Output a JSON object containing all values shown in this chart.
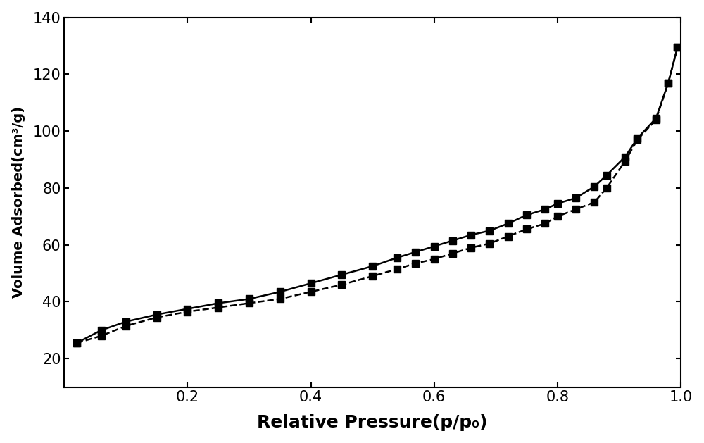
{
  "adsorption_x": [
    0.02,
    0.06,
    0.1,
    0.15,
    0.2,
    0.25,
    0.3,
    0.35,
    0.4,
    0.45,
    0.5,
    0.54,
    0.57,
    0.6,
    0.63,
    0.66,
    0.69,
    0.72,
    0.75,
    0.78,
    0.8,
    0.83,
    0.86,
    0.88,
    0.91,
    0.93,
    0.96,
    0.98,
    0.995
  ],
  "adsorption_y": [
    25.5,
    28.0,
    31.5,
    34.5,
    36.5,
    38.0,
    39.5,
    41.0,
    43.5,
    46.0,
    49.0,
    51.5,
    53.5,
    55.0,
    57.0,
    59.0,
    60.5,
    63.0,
    65.5,
    67.5,
    70.0,
    72.5,
    75.0,
    80.0,
    89.5,
    97.0,
    104.0,
    117.0,
    129.5
  ],
  "desorption_x": [
    0.995,
    0.98,
    0.96,
    0.93,
    0.91,
    0.88,
    0.86,
    0.83,
    0.8,
    0.78,
    0.75,
    0.72,
    0.69,
    0.66,
    0.63,
    0.6,
    0.57,
    0.54,
    0.5,
    0.45,
    0.4,
    0.35,
    0.3,
    0.25,
    0.2,
    0.15,
    0.1,
    0.06,
    0.02
  ],
  "desorption_y": [
    129.5,
    117.0,
    104.5,
    97.5,
    91.0,
    84.5,
    80.5,
    76.5,
    74.5,
    72.5,
    70.5,
    67.5,
    65.0,
    63.5,
    61.5,
    59.5,
    57.5,
    55.5,
    52.5,
    49.5,
    46.5,
    43.5,
    41.0,
    39.5,
    37.5,
    35.5,
    33.0,
    30.0,
    25.5
  ],
  "xlabel": "Relative Pressure(p/p₀)",
  "ylabel": "Volume Adsorbed(cm³/g)",
  "xlim": [
    0.0,
    1.0
  ],
  "ylim": [
    10,
    140
  ],
  "yticks": [
    20,
    40,
    60,
    80,
    100,
    120,
    140
  ],
  "xticks": [
    0.2,
    0.4,
    0.6,
    0.8,
    1.0
  ],
  "line_color": "#000000",
  "marker": "s",
  "markersize": 7,
  "linewidth": 1.8,
  "background_color": "#ffffff",
  "xlabel_fontsize": 18,
  "ylabel_fontsize": 14,
  "tick_fontsize": 15
}
